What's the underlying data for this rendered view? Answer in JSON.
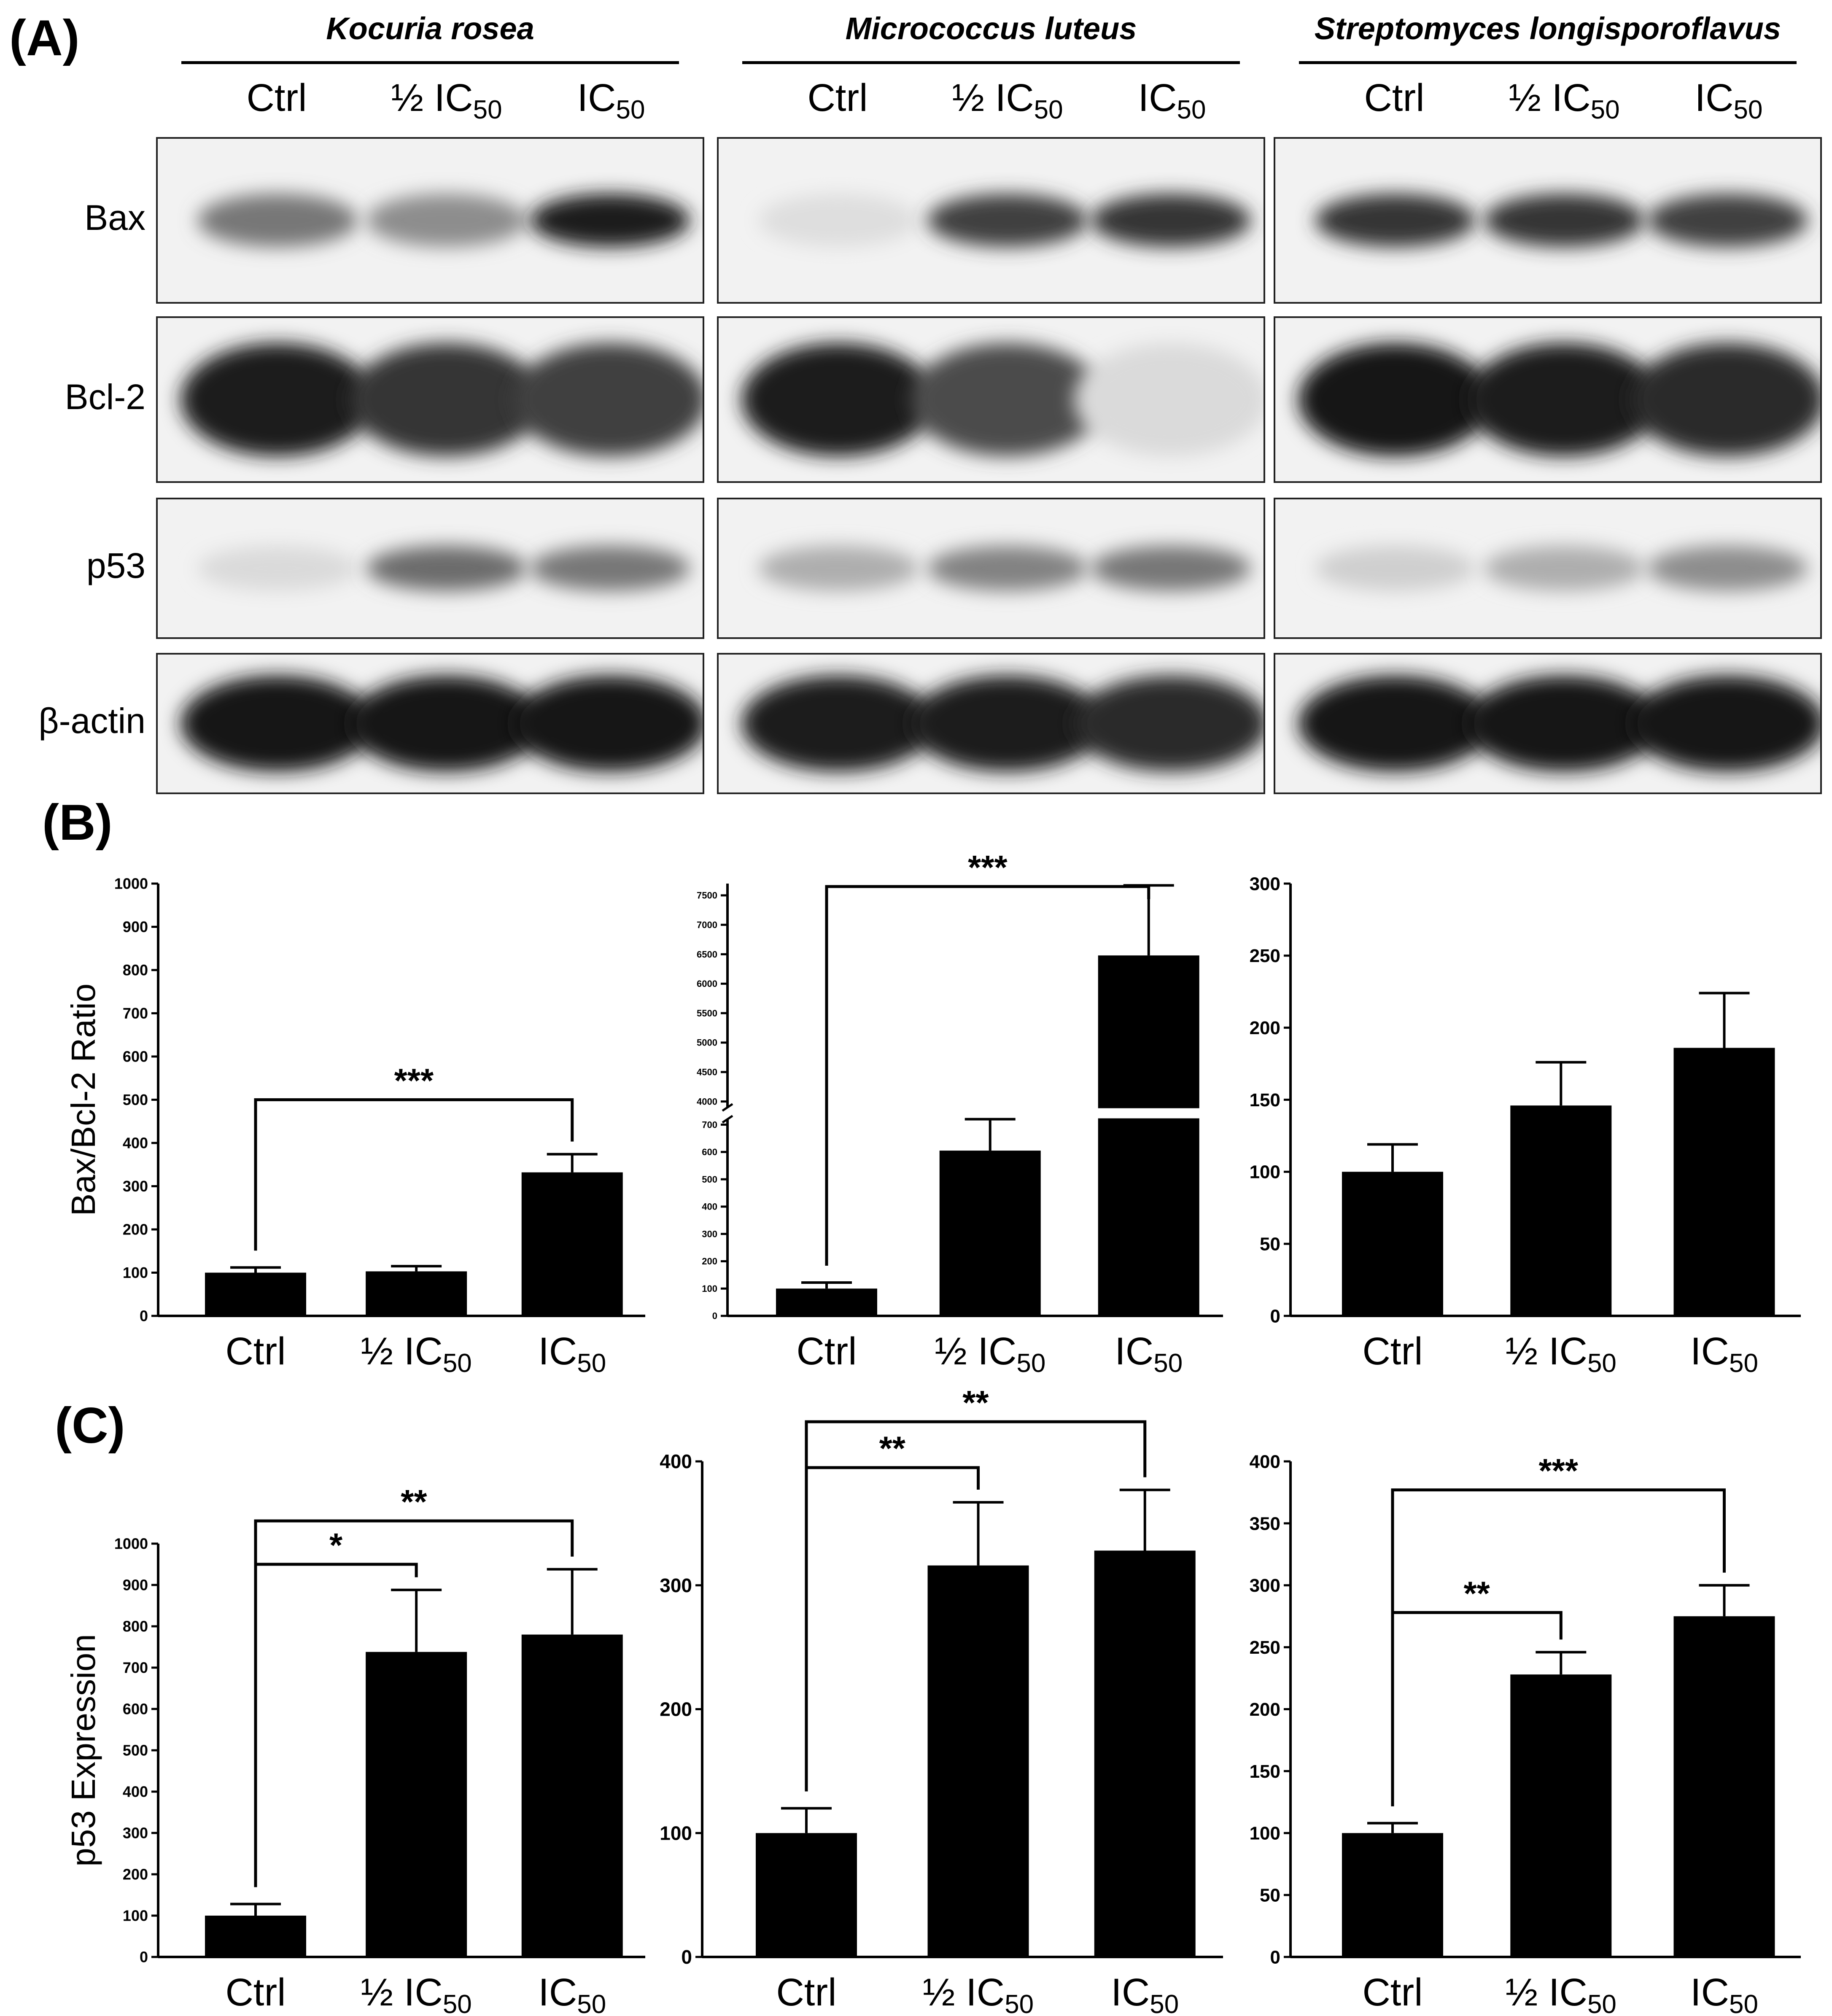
{
  "panel_labels": {
    "a": "(A)",
    "b": "(B)",
    "c": "(C)"
  },
  "species": [
    "Kocuria rosea",
    "Micrococcus luteus",
    "Streptomyces longisporoflavus"
  ],
  "lanes": [
    {
      "main": "Ctrl",
      "sub": ""
    },
    {
      "main": "½ IC",
      "sub": "50"
    },
    {
      "main": "IC",
      "sub": "50"
    }
  ],
  "blot_rows": [
    "Bax",
    "Bcl-2",
    "p53",
    "β-actin"
  ],
  "blot_intensity": {
    "Bax": [
      [
        0.55,
        0.45,
        0.95
      ],
      [
        0.08,
        0.8,
        0.85
      ],
      [
        0.85,
        0.85,
        0.8
      ]
    ],
    "Bcl-2": [
      [
        0.95,
        0.85,
        0.8
      ],
      [
        0.95,
        0.75,
        0.1
      ],
      [
        1.0,
        0.95,
        0.9
      ]
    ],
    "p53": [
      [
        0.1,
        0.6,
        0.55
      ],
      [
        0.3,
        0.5,
        0.55
      ],
      [
        0.15,
        0.3,
        0.45
      ]
    ],
    "β-actin": [
      [
        1.0,
        1.0,
        1.0
      ],
      [
        0.95,
        0.95,
        0.9
      ],
      [
        1.0,
        1.0,
        1.0
      ]
    ]
  },
  "chart_data": [
    {
      "type": "bar",
      "panel": "B",
      "group": "Kocuria rosea",
      "ylabel": "Bax/Bcl-2 Ratio",
      "categories": [
        "Ctrl",
        "½ IC50",
        "IC50"
      ],
      "values": [
        100,
        103,
        332
      ],
      "errors": [
        12,
        12,
        42
      ],
      "ylim": [
        0,
        1000
      ],
      "yticks": [
        0,
        100,
        200,
        300,
        400,
        500,
        600,
        700,
        800,
        900,
        1000
      ],
      "significance": [
        {
          "from": 0,
          "to": 2,
          "label": "***",
          "level": 500
        }
      ]
    },
    {
      "type": "bar",
      "panel": "B",
      "group": "Micrococcus luteus",
      "ylabel": "",
      "categories": [
        "Ctrl",
        "½ IC50",
        "IC50"
      ],
      "values": [
        100,
        605,
        6480
      ],
      "errors": [
        22,
        115,
        1190
      ],
      "ylim": [
        0,
        7700
      ],
      "axis_break": {
        "lower": [
          0,
          720
        ],
        "upper": [
          3900,
          7700
        ]
      },
      "yticks": [
        0,
        100,
        200,
        300,
        400,
        500,
        600,
        700,
        4000,
        4500,
        5000,
        5500,
        6000,
        6500,
        7000,
        7500
      ],
      "significance": [
        {
          "from": 0,
          "to": 2,
          "label": "***",
          "level": 7650
        }
      ]
    },
    {
      "type": "bar",
      "panel": "B",
      "group": "Streptomyces longisporoflavus",
      "ylabel": "",
      "categories": [
        "Ctrl",
        "½ IC50",
        "IC50"
      ],
      "values": [
        100,
        146,
        186
      ],
      "errors": [
        19,
        30,
        38
      ],
      "ylim": [
        0,
        300
      ],
      "yticks": [
        0,
        50,
        100,
        150,
        200,
        250,
        300
      ],
      "significance": []
    },
    {
      "type": "bar",
      "panel": "C",
      "group": "Kocuria rosea",
      "ylabel": "p53 Expression",
      "categories": [
        "Ctrl",
        "½ IC50",
        "IC50"
      ],
      "values": [
        100,
        738,
        780
      ],
      "errors": [
        28,
        150,
        158
      ],
      "ylim": [
        0,
        1000
      ],
      "yticks": [
        0,
        100,
        200,
        300,
        400,
        500,
        600,
        700,
        800,
        900,
        1000
      ],
      "significance": [
        {
          "from": 0,
          "to": 1,
          "label": "*",
          "level": 950
        },
        {
          "from": 0,
          "to": 2,
          "label": "**",
          "level": 1055
        }
      ]
    },
    {
      "type": "bar",
      "panel": "C",
      "group": "Micrococcus luteus",
      "ylabel": "",
      "categories": [
        "Ctrl",
        "½ IC50",
        "IC50"
      ],
      "values": [
        100,
        316,
        328
      ],
      "errors": [
        20,
        51,
        49
      ],
      "ylim": [
        0,
        400
      ],
      "yticks": [
        0,
        100,
        200,
        300,
        400
      ],
      "significance": [
        {
          "from": 0,
          "to": 1,
          "label": "**",
          "level": 395
        },
        {
          "from": 0,
          "to": 2,
          "label": "**",
          "level": 432
        }
      ]
    },
    {
      "type": "bar",
      "panel": "C",
      "group": "Streptomyces longisporoflavus",
      "ylabel": "",
      "categories": [
        "Ctrl",
        "½ IC50",
        "IC50"
      ],
      "values": [
        100,
        228,
        275
      ],
      "errors": [
        8,
        18,
        25
      ],
      "ylim": [
        0,
        400
      ],
      "yticks": [
        0,
        50,
        100,
        150,
        200,
        250,
        300,
        350,
        400
      ],
      "significance": [
        {
          "from": 0,
          "to": 1,
          "label": "**",
          "level": 278
        },
        {
          "from": 0,
          "to": 2,
          "label": "***",
          "level": 377
        }
      ]
    }
  ]
}
